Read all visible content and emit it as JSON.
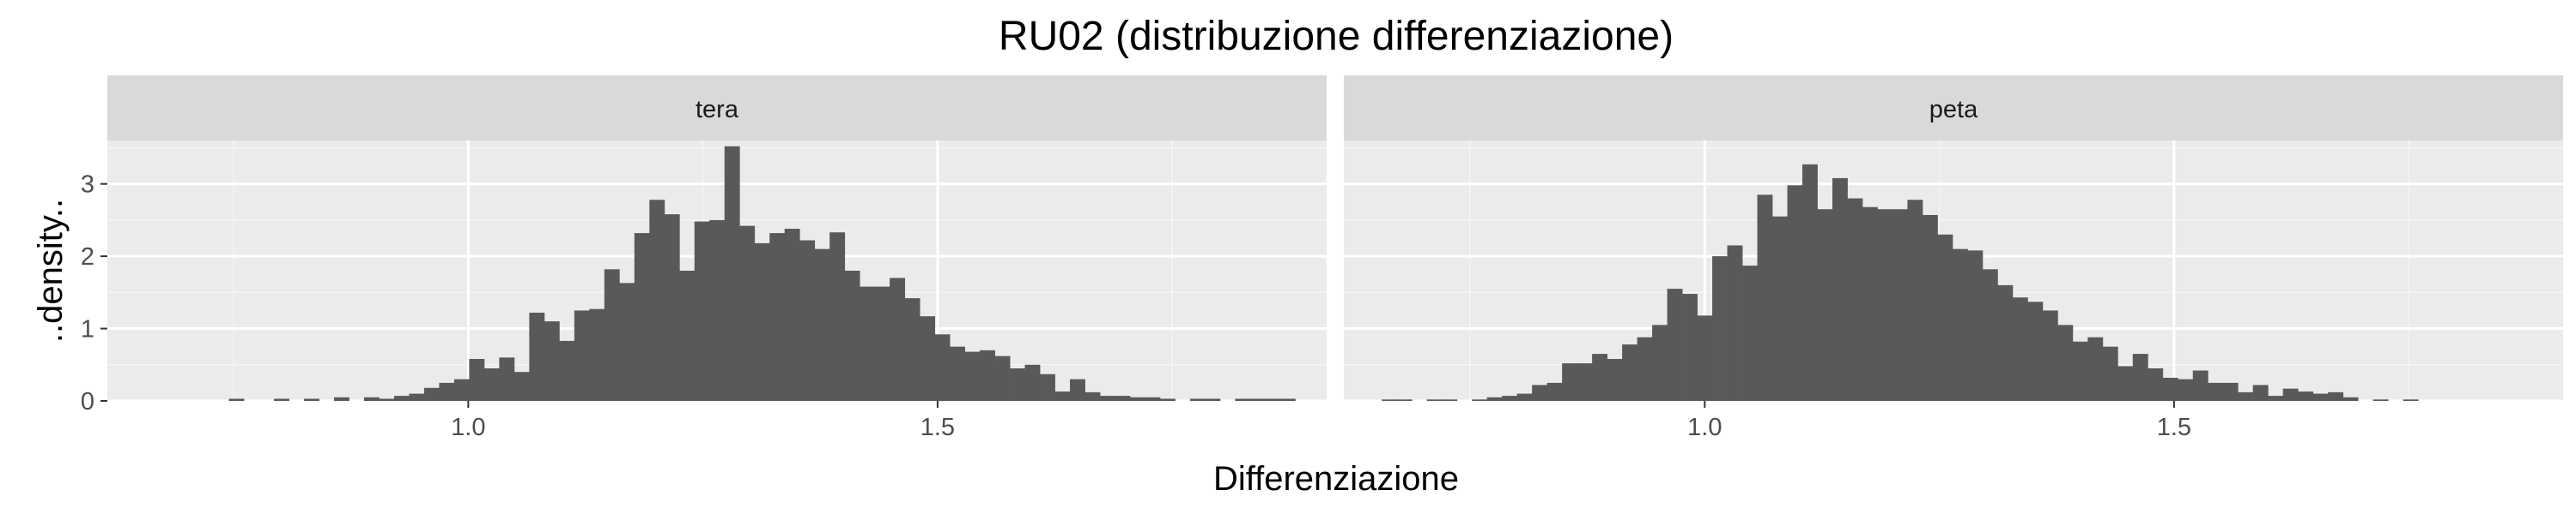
{
  "chart_data": {
    "type": "bar",
    "title": "RU02 (distribuzione differenziazione)",
    "xlabel": "Differenziazione",
    "ylabel": "..density..",
    "xlim": [
      0.6155,
      1.9145
    ],
    "ylim": [
      0,
      3.6
    ],
    "x_ticks": [
      1.0,
      1.5
    ],
    "x_tick_labels": [
      "1.0",
      "1.5"
    ],
    "y_ticks": [
      0,
      1,
      2,
      3
    ],
    "y_tick_labels": [
      "0",
      "1",
      "2",
      "3"
    ],
    "bin_width": 0.016,
    "grid": true,
    "facets": [
      {
        "name": "tera",
        "bin_start": 0.745,
        "values": [
          0.03,
          0,
          0,
          0.03,
          0,
          0.03,
          0,
          0.05,
          0,
          0.05,
          0.03,
          0.07,
          0.1,
          0.18,
          0.25,
          0.3,
          0.58,
          0.45,
          0.6,
          0.4,
          1.22,
          1.1,
          0.83,
          1.25,
          1.27,
          1.82,
          1.63,
          2.32,
          2.78,
          2.58,
          1.8,
          2.48,
          2.5,
          3.52,
          2.42,
          2.18,
          2.32,
          2.38,
          2.22,
          2.1,
          2.33,
          1.8,
          1.58,
          1.58,
          1.7,
          1.42,
          1.17,
          0.92,
          0.75,
          0.68,
          0.7,
          0.62,
          0.45,
          0.5,
          0.37,
          0.13,
          0.3,
          0.12,
          0.07,
          0.07,
          0.05,
          0.05,
          0.03,
          0,
          0.03,
          0.03,
          0,
          0.03,
          0.03,
          0.03,
          0.03
        ]
      },
      {
        "name": "peta",
        "bin_start": 0.656,
        "values": [
          0.02,
          0.02,
          0,
          0.02,
          0.02,
          0,
          0.02,
          0.05,
          0.07,
          0.1,
          0.22,
          0.25,
          0.52,
          0.52,
          0.65,
          0.58,
          0.78,
          0.88,
          1.05,
          1.55,
          1.48,
          1.18,
          2.0,
          2.15,
          1.87,
          2.85,
          2.55,
          2.98,
          3.27,
          2.65,
          3.08,
          2.8,
          2.68,
          2.65,
          2.65,
          2.78,
          2.57,
          2.3,
          2.1,
          2.08,
          1.82,
          1.6,
          1.43,
          1.37,
          1.25,
          1.05,
          0.82,
          0.88,
          0.75,
          0.48,
          0.65,
          0.45,
          0.32,
          0.3,
          0.42,
          0.25,
          0.25,
          0.12,
          0.22,
          0.07,
          0.17,
          0.13,
          0.1,
          0.12,
          0.05,
          0,
          0.02,
          0,
          0.02
        ]
      }
    ]
  }
}
